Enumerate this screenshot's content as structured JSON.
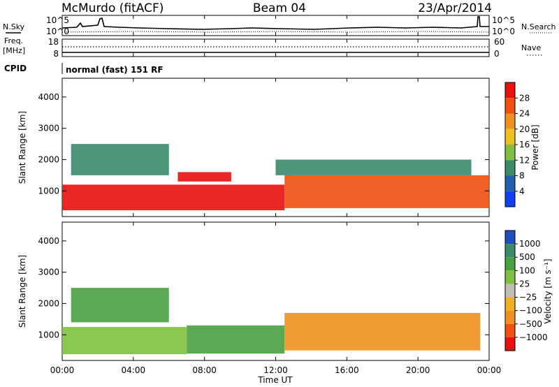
{
  "header": {
    "station": "McMurdo (fitACF)",
    "beam": "Beam 04",
    "date": "23/Apr/2014"
  },
  "noise_panel": {
    "left_label": "N.Sky",
    "right_label": "N.Search",
    "left_ticks": [
      "10^5",
      "10^0"
    ],
    "right_ticks": [
      "10^5",
      "10^0"
    ]
  },
  "freq_panel": {
    "left_label_1": "Freq.",
    "left_label_2": "[MHz]",
    "right_label": "Nave",
    "left_ticks": [
      "18",
      "8"
    ],
    "right_ticks": [
      "60",
      "0"
    ]
  },
  "cpid": {
    "label": "CPID",
    "value": "normal (fast) 151 RF"
  },
  "x_axis": {
    "label": "Time UT",
    "range_hours": [
      0,
      24
    ],
    "ticks": [
      "00:00",
      "04:00",
      "08:00",
      "12:00",
      "16:00",
      "20:00",
      "00:00"
    ]
  },
  "chart_data": [
    {
      "type": "heatmap",
      "quantity": "power",
      "ylabel": "Slant Range [km]",
      "ylim": [
        180,
        4600
      ],
      "yticks": [
        "1000",
        "2000",
        "3000",
        "4000"
      ],
      "colorbar_label": "Power [dB]",
      "colorbar_ticks": [
        "4",
        "8",
        "12",
        "16",
        "20",
        "24",
        "28"
      ],
      "colors": [
        "#1040f0",
        "#2060b0",
        "#3a8a6a",
        "#80c040",
        "#f0c020",
        "#f09020",
        "#f05010",
        "#e81010"
      ],
      "bands": [
        {
          "t": [
            0,
            12.5
          ],
          "range": [
            380,
            1200
          ],
          "value": 30
        },
        {
          "t": [
            12.5,
            24
          ],
          "range": [
            450,
            1500
          ],
          "value": 24
        },
        {
          "t": [
            0.5,
            6
          ],
          "range": [
            1500,
            2500
          ],
          "value": 8
        },
        {
          "t": [
            6.5,
            9.5
          ],
          "range": [
            1300,
            1600
          ],
          "value": 29
        },
        {
          "t": [
            12,
            23
          ],
          "range": [
            1500,
            2000
          ],
          "value": 10
        }
      ]
    },
    {
      "type": "heatmap",
      "quantity": "velocity",
      "ylabel": "Slant Range [km]",
      "ylim": [
        180,
        4600
      ],
      "yticks": [
        "1000",
        "2000",
        "3000",
        "4000"
      ],
      "colorbar_label": "Velocity [m s⁻¹]",
      "colorbar_ticks": [
        "1000",
        "500",
        "100",
        "25",
        "−25",
        "−100",
        "−500",
        "−1000"
      ],
      "colors": [
        "#2050c0",
        "#3a8a6a",
        "#4aa040",
        "#80c040",
        "#c0c0b0",
        "#f0b020",
        "#f09020",
        "#f05010",
        "#e81010"
      ],
      "bands": [
        {
          "t": [
            0,
            7
          ],
          "range": [
            380,
            1250
          ],
          "value": 60
        },
        {
          "t": [
            7,
            12.5
          ],
          "range": [
            400,
            1300
          ],
          "value": 100
        },
        {
          "t": [
            12.5,
            23.5
          ],
          "range": [
            500,
            1700
          ],
          "value": -150
        },
        {
          "t": [
            0.5,
            6
          ],
          "range": [
            1400,
            2500
          ],
          "value": 200
        }
      ]
    }
  ]
}
